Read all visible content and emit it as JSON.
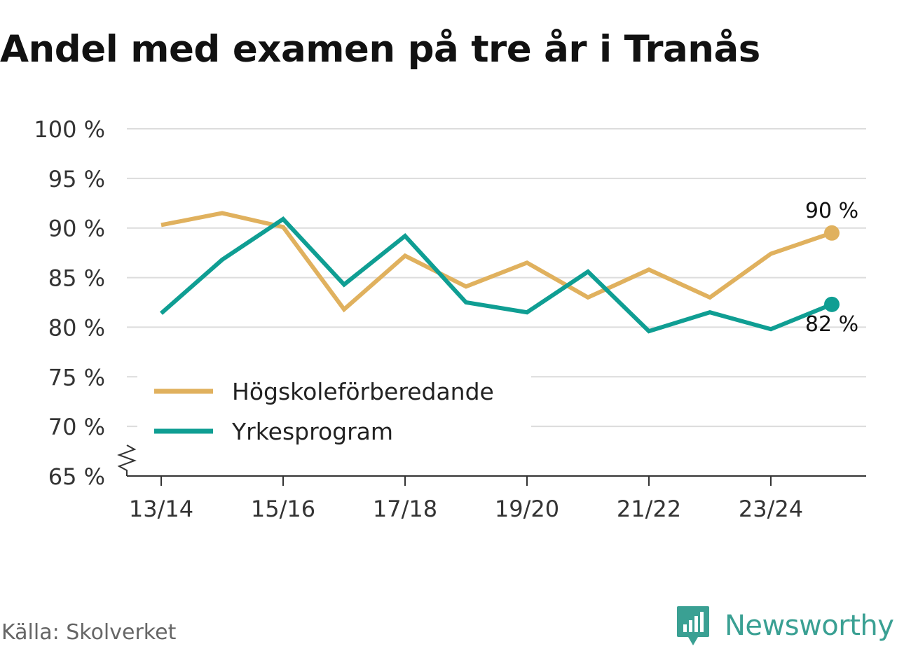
{
  "title": "Andel med examen på tre år i Tranås",
  "source": "Källa: Skolverket",
  "brand": {
    "name": "Newsworthy",
    "icon": "newsworthy-chart-bubble-icon",
    "color": "#3aa093"
  },
  "chart_data": {
    "type": "line",
    "title": "Andel med examen på tre år i Tranås",
    "xlabel": "",
    "ylabel": "",
    "categories": [
      "13/14",
      "14/15",
      "15/16",
      "16/17",
      "17/18",
      "18/19",
      "19/20",
      "20/21",
      "21/22",
      "22/23",
      "23/24",
      "24/25"
    ],
    "x_tick_labels": [
      "13/14",
      "15/16",
      "17/18",
      "19/20",
      "21/22",
      "23/24"
    ],
    "y_ticks": [
      65,
      70,
      75,
      80,
      85,
      90,
      95,
      100
    ],
    "y_tick_suffix": " %",
    "ylim": [
      65,
      100
    ],
    "y_axis_break": true,
    "grid": true,
    "legend_position": "bottom-left",
    "series": [
      {
        "name": "Högskoleförberedande",
        "color": "#e0b15e",
        "values": [
          90.3,
          91.5,
          90.1,
          81.8,
          87.2,
          84.1,
          86.5,
          83.0,
          85.8,
          83.0,
          87.4,
          89.5
        ],
        "end_label": "90 %",
        "end_label_position": "above"
      },
      {
        "name": "Yrkesprogram",
        "color": "#0f9e93",
        "values": [
          81.4,
          86.8,
          90.9,
          84.3,
          89.2,
          82.5,
          81.5,
          85.6,
          79.6,
          81.5,
          79.8,
          82.3
        ],
        "end_label": "82 %",
        "end_label_position": "below"
      }
    ]
  }
}
